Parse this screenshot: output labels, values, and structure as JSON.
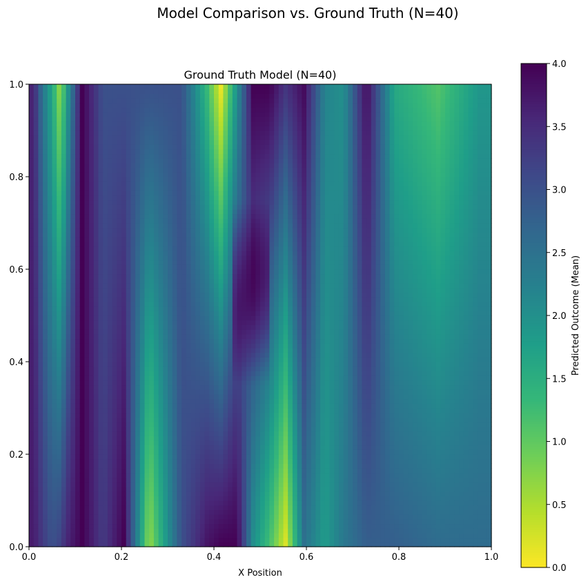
{
  "figure": {
    "suptitle": "Model Comparison vs. Ground Truth (N=40)"
  },
  "chart_data": {
    "type": "heatmap",
    "title": "Ground Truth Model (N=40)",
    "xlabel": "X Position",
    "ylabel": "",
    "xlim": [
      0.0,
      1.0
    ],
    "ylim": [
      0.0,
      1.0
    ],
    "x_tick_labels": [
      "0.0",
      "0.2",
      "0.4",
      "0.6",
      "0.8",
      "1.0"
    ],
    "y_tick_labels": [
      "0.0",
      "0.2",
      "0.4",
      "0.6",
      "0.8",
      "1.0"
    ],
    "colormap": "viridis_r",
    "value_range": [
      0.0,
      4.0
    ],
    "colorbar": {
      "label": "Predicted Outcome (Mean)",
      "tick_labels": [
        "0.0",
        "0.5",
        "1.0",
        "1.5",
        "2.0",
        "2.5",
        "3.0",
        "3.5",
        "4.0"
      ]
    },
    "grid_resolution": [
      100,
      100
    ],
    "field": {
      "description": "Predicted outcome sampled as a smooth field over X position and Y; values estimated from the image (bands listed by x-range with value at y=0 and y=1).",
      "x_bands": [
        {
          "x": [
            0.0,
            0.02
          ],
          "v0": 3.7,
          "v1": 3.6
        },
        {
          "x": [
            0.02,
            0.04
          ],
          "v0": 3.3,
          "v1": 2.4
        },
        {
          "x": [
            0.04,
            0.06
          ],
          "v0": 3.0,
          "v1": 1.6
        },
        {
          "x": [
            0.06,
            0.075
          ],
          "v0": 3.2,
          "v1": 0.6
        },
        {
          "x": [
            0.075,
            0.09
          ],
          "v0": 3.6,
          "v1": 1.8
        },
        {
          "x": [
            0.09,
            0.14
          ],
          "v0": 4.0,
          "v1": 4.0
        },
        {
          "x": [
            0.14,
            0.18
          ],
          "v0": 3.3,
          "v1": 3.0
        },
        {
          "x": [
            0.18,
            0.23
          ],
          "v0": 4.0,
          "v1": 3.0
        },
        {
          "x": [
            0.23,
            0.29
          ],
          "v0": 0.6,
          "v1": 3.0
        },
        {
          "x": [
            0.29,
            0.37
          ],
          "v0": 3.0,
          "v1": 3.0
        },
        {
          "x": [
            0.37,
            0.4
          ],
          "v0": 3.8,
          "v1": 1.3
        },
        {
          "x": [
            0.4,
            0.43
          ],
          "v0": 4.0,
          "v1": 0.1
        },
        {
          "x": [
            0.43,
            0.47
          ],
          "v0": 4.0,
          "v1": 2.0
        },
        {
          "x": [
            0.47,
            0.5
          ],
          "v0": 2.0,
          "v1": 4.0
        },
        {
          "x": [
            0.5,
            0.54
          ],
          "v0": 1.2,
          "v1": 4.0
        },
        {
          "x": [
            0.54,
            0.57
          ],
          "v0": 0.2,
          "v1": 3.4
        },
        {
          "x": [
            0.57,
            0.62
          ],
          "v0": 2.5,
          "v1": 3.9
        },
        {
          "x": [
            0.62,
            0.66
          ],
          "v0": 1.8,
          "v1": 2.2
        },
        {
          "x": [
            0.66,
            0.7
          ],
          "v0": 2.4,
          "v1": 2.0
        },
        {
          "x": [
            0.7,
            0.76
          ],
          "v0": 2.8,
          "v1": 3.9
        },
        {
          "x": [
            0.76,
            0.82
          ],
          "v0": 2.8,
          "v1": 1.6
        },
        {
          "x": [
            0.82,
            0.95
          ],
          "v0": 2.6,
          "v1": 1.1
        },
        {
          "x": [
            0.95,
            1.0
          ],
          "v0": 2.6,
          "v1": 1.9
        }
      ]
    }
  }
}
